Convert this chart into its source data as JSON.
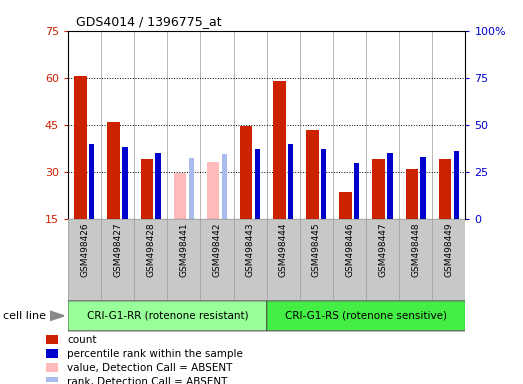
{
  "title": "GDS4014 / 1396775_at",
  "samples": [
    "GSM498426",
    "GSM498427",
    "GSM498428",
    "GSM498441",
    "GSM498442",
    "GSM498443",
    "GSM498444",
    "GSM498445",
    "GSM498446",
    "GSM498447",
    "GSM498448",
    "GSM498449"
  ],
  "count_values": [
    60.5,
    46.0,
    34.0,
    null,
    null,
    44.5,
    59.0,
    43.5,
    23.5,
    34.0,
    31.0,
    34.0
  ],
  "absent_values": [
    null,
    null,
    null,
    29.5,
    33.0,
    null,
    null,
    null,
    null,
    null,
    null,
    null
  ],
  "percentile_values": [
    40.0,
    38.0,
    35.0,
    null,
    null,
    37.0,
    40.0,
    37.0,
    29.5,
    35.0,
    33.0,
    36.0
  ],
  "absent_rank_values": [
    null,
    null,
    null,
    32.5,
    34.5,
    null,
    null,
    null,
    null,
    null,
    null,
    null
  ],
  "ylim": [
    15,
    75
  ],
  "yticks": [
    15,
    30,
    45,
    60,
    75
  ],
  "ytick_labels": [
    "15",
    "30",
    "45",
    "60",
    "75"
  ],
  "right_ylim": [
    0,
    100
  ],
  "right_yticks": [
    0,
    25,
    50,
    75,
    100
  ],
  "right_ytick_labels": [
    "0",
    "25",
    "50",
    "75",
    "100%"
  ],
  "count_color": "#cc2200",
  "absent_value_color": "#ffbbbb",
  "percentile_color": "#0000cc",
  "absent_rank_color": "#aabbee",
  "group1_label": "CRI-G1-RR (rotenone resistant)",
  "group2_label": "CRI-G1-RS (rotenone sensitive)",
  "group1_color": "#99ff99",
  "group2_color": "#44ee44",
  "group1_count": 6,
  "group2_count": 6,
  "cell_line_label": "cell line",
  "left_axis_color": "#cc2200",
  "right_axis_color": "#0000cc",
  "legend_items": [
    "count",
    "percentile rank within the sample",
    "value, Detection Call = ABSENT",
    "rank, Detection Call = ABSENT"
  ]
}
